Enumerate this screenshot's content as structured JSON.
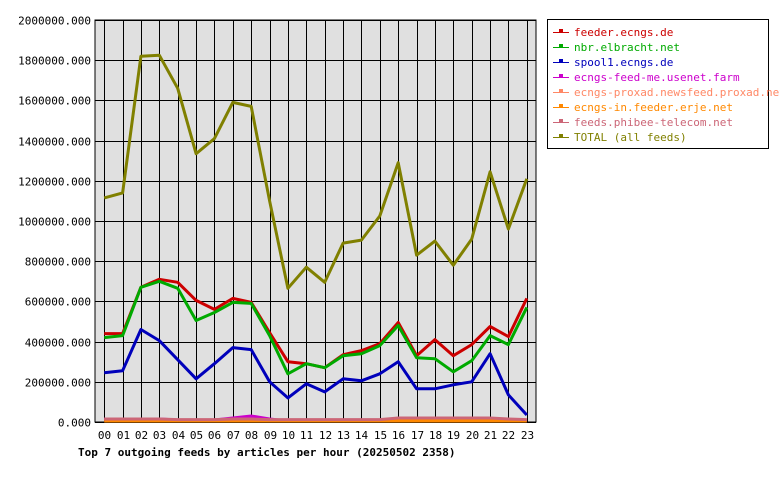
{
  "chart_data": {
    "type": "line",
    "title": "Top 7 outgoing feeds by articles per hour (20250502 2358)",
    "xlabel": "",
    "ylabel": "",
    "categories": [
      "00",
      "01",
      "02",
      "03",
      "04",
      "05",
      "06",
      "07",
      "08",
      "09",
      "10",
      "11",
      "12",
      "13",
      "14",
      "15",
      "16",
      "17",
      "18",
      "19",
      "20",
      "21",
      "22",
      "23"
    ],
    "ylim": [
      0,
      2000000
    ],
    "yticks": [
      "0.000",
      "200000.000",
      "400000.000",
      "600000.000",
      "800000.000",
      "1000000.000",
      "1200000.000",
      "1400000.000",
      "1600000.000",
      "1800000.000",
      "2000000.000"
    ],
    "grid": true,
    "legend_position": "right",
    "series": [
      {
        "name": "feeder.ecngs.de",
        "color": "#cc0000",
        "values": [
          440000,
          440000,
          670000,
          710000,
          695000,
          605000,
          560000,
          615000,
          595000,
          445000,
          300000,
          290000,
          270000,
          335000,
          355000,
          390000,
          495000,
          330000,
          410000,
          330000,
          385000,
          475000,
          425000,
          615000
        ]
      },
      {
        "name": "nbr.elbracht.net",
        "color": "#00aa00",
        "values": [
          420000,
          430000,
          670000,
          700000,
          665000,
          505000,
          545000,
          595000,
          590000,
          430000,
          240000,
          290000,
          270000,
          330000,
          340000,
          380000,
          480000,
          320000,
          315000,
          250000,
          305000,
          430000,
          385000,
          570000
        ]
      },
      {
        "name": "spool1.ecngs.de",
        "color": "#0000bb",
        "values": [
          245000,
          255000,
          460000,
          405000,
          310000,
          215000,
          290000,
          370000,
          360000,
          200000,
          120000,
          190000,
          150000,
          215000,
          205000,
          240000,
          300000,
          165000,
          165000,
          185000,
          200000,
          340000,
          135000,
          35000
        ]
      },
      {
        "name": "ecngs-feed-me.usenet.farm",
        "color": "#cc00cc",
        "values": [
          15000,
          15000,
          15000,
          15000,
          10000,
          10000,
          10000,
          20000,
          30000,
          15000,
          5000,
          5000,
          5000,
          5000,
          5000,
          5000,
          10000,
          10000,
          10000,
          10000,
          10000,
          15000,
          10000,
          5000
        ]
      },
      {
        "name": "ecngs-proxad.newsfeed.proxad.net",
        "color": "#ff8866",
        "values": [
          10000,
          10000,
          10000,
          10000,
          10000,
          10000,
          10000,
          10000,
          10000,
          10000,
          10000,
          10000,
          10000,
          10000,
          10000,
          10000,
          10000,
          10000,
          10000,
          10000,
          10000,
          10000,
          10000,
          10000
        ]
      },
      {
        "name": "ecngs-in.feeder.erje.net",
        "color": "#ff8800",
        "values": [
          5000,
          5000,
          5000,
          5000,
          5000,
          5000,
          5000,
          5000,
          5000,
          5000,
          5000,
          5000,
          5000,
          5000,
          5000,
          5000,
          5000,
          5000,
          5000,
          5000,
          5000,
          5000,
          5000,
          5000
        ]
      },
      {
        "name": "feeds.phibee-telecom.net",
        "color": "#cc6677",
        "values": [
          15000,
          15000,
          15000,
          15000,
          12000,
          12000,
          12000,
          15000,
          15000,
          12000,
          12000,
          12000,
          12000,
          12000,
          12000,
          12000,
          20000,
          20000,
          20000,
          20000,
          20000,
          20000,
          15000,
          12000
        ]
      },
      {
        "name": "TOTAL (all feeds)",
        "color": "#808000",
        "values": [
          1115000,
          1140000,
          1820000,
          1825000,
          1660000,
          1335000,
          1410000,
          1590000,
          1570000,
          1100000,
          665000,
          770000,
          695000,
          890000,
          905000,
          1025000,
          1290000,
          830000,
          900000,
          780000,
          910000,
          1245000,
          960000,
          1210000
        ]
      }
    ]
  }
}
